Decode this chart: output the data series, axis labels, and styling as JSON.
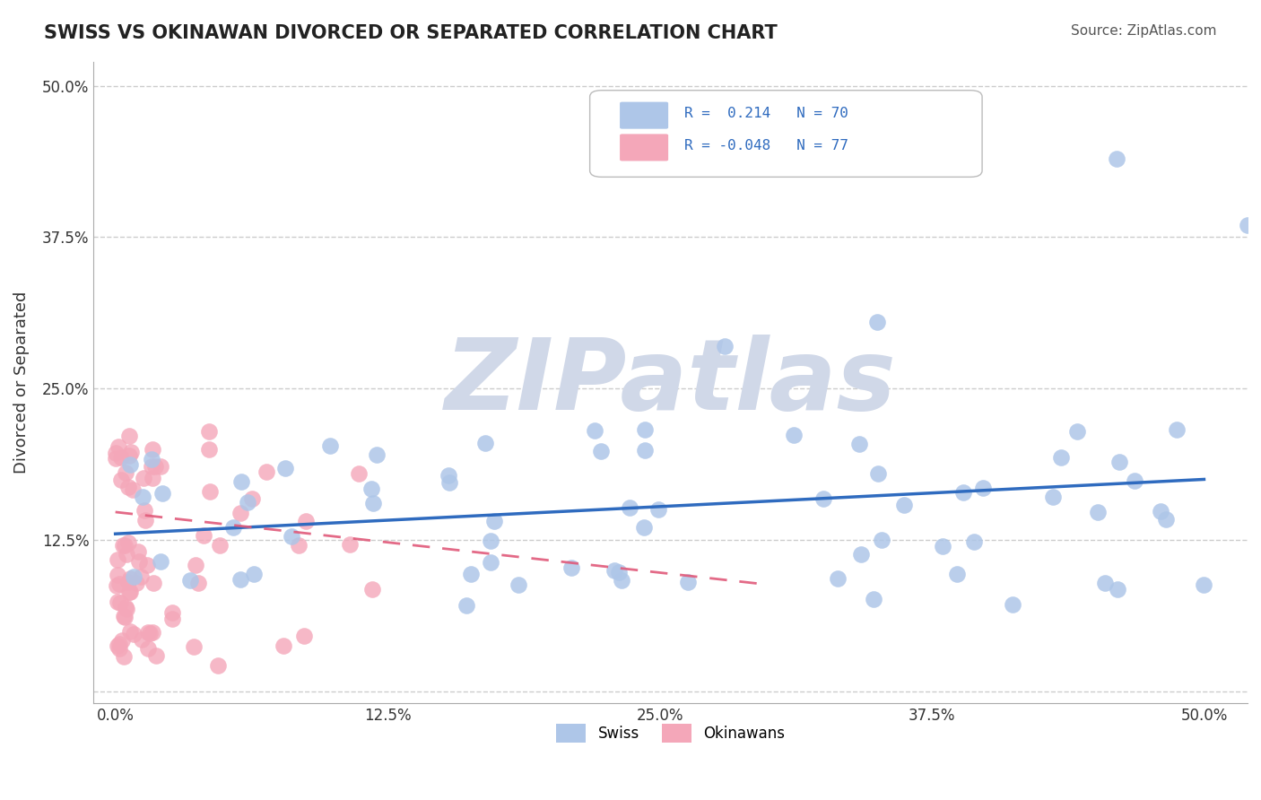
{
  "title": "SWISS VS OKINAWAN DIVORCED OR SEPARATED CORRELATION CHART",
  "source_text": "Source: ZipAtlas.com",
  "ylabel": "Divorced or Separated",
  "swiss_R": 0.214,
  "swiss_N": 70,
  "okinawan_R": -0.048,
  "okinawan_N": 77,
  "swiss_color": "#aec6e8",
  "swiss_line_color": "#2f6bbf",
  "okinawan_color": "#f4a7b9",
  "okinawan_line_color": "#e05a7a",
  "background_color": "#ffffff",
  "grid_color": "#cccccc",
  "watermark_text": "ZIPatlas",
  "watermark_color": "#d0d8e8",
  "swiss_line_x": [
    0.0,
    0.5
  ],
  "swiss_line_y": [
    0.13,
    0.175
  ],
  "okinawan_line_x": [
    0.0,
    0.3
  ],
  "okinawan_line_y": [
    0.148,
    0.088
  ],
  "xticks": [
    0.0,
    0.125,
    0.25,
    0.375,
    0.5
  ],
  "xticklabels": [
    "0.0%",
    "12.5%",
    "25.0%",
    "37.5%",
    "50.0%"
  ],
  "yticks": [
    0.0,
    0.125,
    0.25,
    0.375,
    0.5
  ],
  "yticklabels": [
    "",
    "12.5%",
    "25.0%",
    "37.5%",
    "50.0%"
  ],
  "xlim": [
    -0.01,
    0.52
  ],
  "ylim": [
    -0.01,
    0.52
  ]
}
